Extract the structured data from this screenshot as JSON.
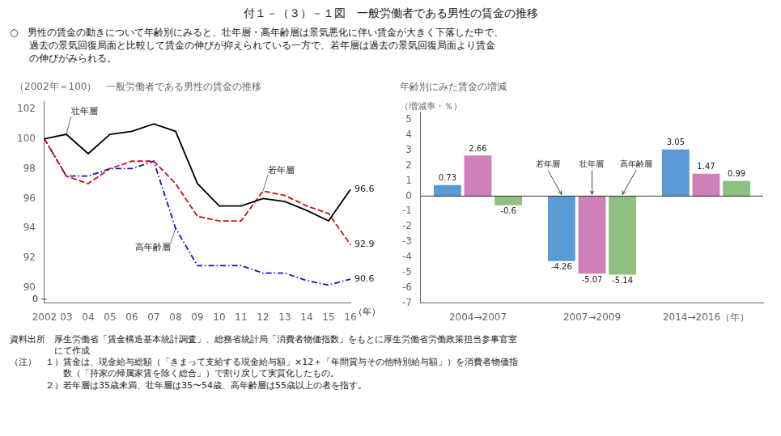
{
  "title": "付１－（３）－１図　一般労働者である男性の賃金の推移",
  "description": [
    "○　男性の賃金の動きについて年齢別にみると、壮年層・高年齢層は景気悪化に伴い賃金が大きく下落した中で、",
    "　　過去の景気回復局面と比較して賃金の伸びが抑えられている一方で、若年層は過去の景気回復局面より賃金",
    "　　の伸びがみられる。"
  ],
  "notes": [
    "資料出所　厚生労働省「賃金構造基本統計調査」、総務省統計局「消費者物価指数」をもとに厚生労働省労働政策担当参事官室",
    "　　　　　にて作成",
    "（注）　１）賃金は、現金給与総額（「きまって支給する現金給与額」×12＋「年間賞与その他特別給与額」）を消費者物価指",
    "　　　　　　数（「持家の帰属家賃を除く総合」）で割り戻して実質化したもの。",
    "　　　　２）若年層は35歳未満、壮年層は35〜54歳、高年齢層は55歳以上の者を指す。"
  ],
  "chart_data": [
    {
      "type": "line",
      "title": "（2002年＝100）　一般労働者である男性の賃金の推移",
      "xlabel": "（年）",
      "categories": [
        "2002",
        "03",
        "04",
        "05",
        "06",
        "07",
        "08",
        "09",
        "10",
        "11",
        "12",
        "13",
        "14",
        "15",
        "16"
      ],
      "series": [
        {
          "name": "壮年層",
          "color": "#000000",
          "line_style": "solid",
          "end_label": 96.6,
          "values": [
            100.0,
            100.3,
            99.0,
            100.3,
            100.5,
            101.0,
            100.5,
            97.0,
            95.5,
            95.5,
            96.0,
            95.8,
            95.2,
            94.5,
            96.6
          ]
        },
        {
          "name": "若年層",
          "color": "#cc1111",
          "line_style": "dashed",
          "end_label": 92.9,
          "values": [
            100.0,
            97.5,
            97.0,
            98.0,
            98.5,
            98.5,
            97.0,
            94.8,
            94.5,
            94.5,
            96.5,
            96.2,
            95.5,
            95.0,
            92.9
          ]
        },
        {
          "name": "高年齢層",
          "color": "#1111cc",
          "line_style": "dashdot",
          "end_label": 90.6,
          "values": [
            100.0,
            97.5,
            97.5,
            98.0,
            98.0,
            98.5,
            94.0,
            91.5,
            91.5,
            91.5,
            91.0,
            91.0,
            90.5,
            90.2,
            90.6
          ]
        }
      ],
      "ylim": [
        89.0,
        102.5
      ],
      "yticks": [
        90,
        92,
        94,
        96,
        98,
        100,
        102
      ],
      "axis_break": {
        "symbol": "～",
        "label": "0"
      },
      "grid": false
    },
    {
      "type": "bar",
      "title": "年齢別にみた賃金の増減",
      "subtitle": "（増減率・％）",
      "categories": [
        "2004→2007",
        "2007→2009",
        "2014→2016（年）"
      ],
      "series": [
        {
          "name": "若年層",
          "color": "#5b9bd5",
          "values": [
            0.73,
            -4.26,
            3.05
          ]
        },
        {
          "name": "壮年層",
          "color": "#d080b8",
          "values": [
            2.66,
            -5.07,
            1.47
          ]
        },
        {
          "name": "高年齢層",
          "color": "#90c080",
          "values": [
            -0.6,
            -5.14,
            0.99
          ]
        }
      ],
      "ylim": [
        -7.0,
        5.5
      ],
      "yticks": [
        -7,
        -6,
        -5,
        -4,
        -3,
        -2,
        -1,
        0,
        1,
        2,
        3,
        4,
        5
      ],
      "data_labels": true,
      "grid": false,
      "annotations": [
        {
          "text": "若年層",
          "category": "2007→2009",
          "series": "若年層"
        },
        {
          "text": "壮年層",
          "category": "2007→2009",
          "series": "壮年層"
        },
        {
          "text": "高年齢層",
          "category": "2007→2009",
          "series": "高年齢層"
        }
      ]
    }
  ]
}
